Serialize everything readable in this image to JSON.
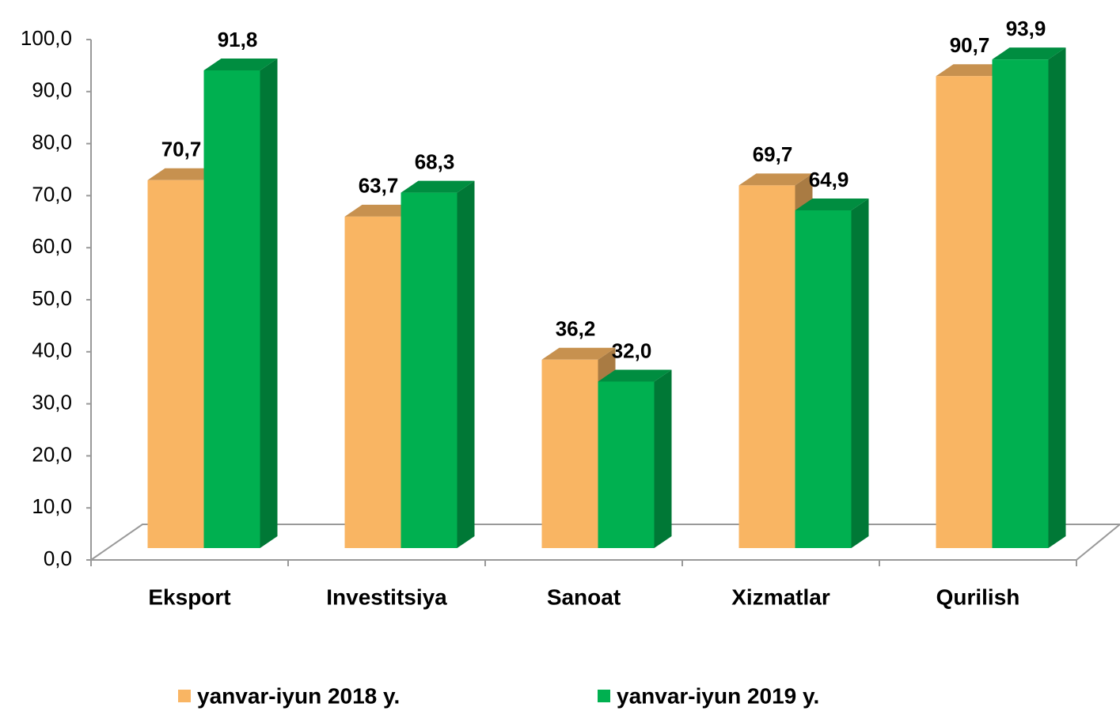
{
  "chart_data": {
    "type": "bar3d",
    "categories": [
      "Eksport",
      "Investitsiya",
      "Sanoat",
      "Xizmatlar",
      "Qurilish"
    ],
    "series": [
      {
        "name": "yanvar-iyun 2018 y.",
        "color": "#F9B563",
        "values": [
          70.7,
          63.7,
          36.2,
          69.7,
          90.7
        ],
        "value_labels": [
          "70,7",
          "63,7",
          "36,2",
          "69,7",
          "90,7"
        ]
      },
      {
        "name": "yanvar-iyun 2019 y.",
        "color": "#00B050",
        "values": [
          91.8,
          68.3,
          32.0,
          64.9,
          93.9
        ],
        "value_labels": [
          "91,8",
          "68,3",
          "32,0",
          "64,9",
          "93,9"
        ]
      }
    ],
    "ylim": [
      0,
      100
    ],
    "yticks": [
      {
        "value": 0,
        "label": "0,0"
      },
      {
        "value": 10,
        "label": "10,0"
      },
      {
        "value": 20,
        "label": "20,0"
      },
      {
        "value": 30,
        "label": "30,0"
      },
      {
        "value": 40,
        "label": "40,0"
      },
      {
        "value": 50,
        "label": "50,0"
      },
      {
        "value": 60,
        "label": "60,0"
      },
      {
        "value": 70,
        "label": "70,0"
      },
      {
        "value": 80,
        "label": "80,0"
      },
      {
        "value": 90,
        "label": "90,0"
      },
      {
        "value": 100,
        "label": "100,0"
      }
    ],
    "legend": "bottom"
  }
}
